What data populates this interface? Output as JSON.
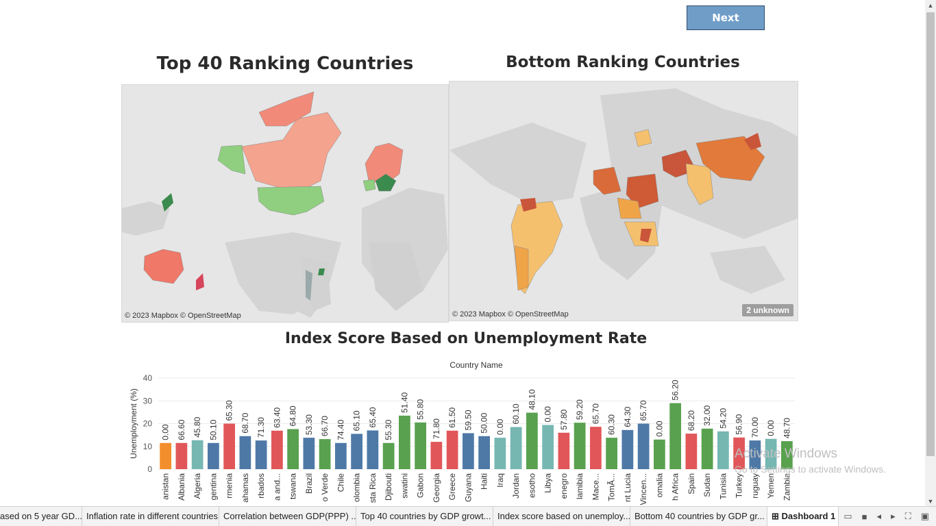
{
  "buttons": {
    "next_label": "Next"
  },
  "maps": {
    "top": {
      "title": "Top 40 Ranking Countries",
      "attribution": "© 2023 Mapbox © OpenStreetMap"
    },
    "bottom": {
      "title": "Bottom Ranking Countries",
      "attribution": "© 2023 Mapbox © OpenStreetMap",
      "unknown_badge": "2 unknown"
    }
  },
  "chart": {
    "title": "Index Score Based on Unemployment Rate",
    "subtitle": "Country Name"
  },
  "chart_data": {
    "type": "bar",
    "title": "Index Score Based on Unemployment Rate",
    "xlabel": "Country Name",
    "ylabel": "Unemployment (%)",
    "ylim": [
      0,
      40
    ],
    "yticks": [
      0,
      10,
      20,
      30,
      40
    ],
    "categories": [
      "anistan",
      "Albania",
      "Algeria",
      "gentina",
      "rmenia",
      "ahamas",
      "rbados",
      "a and...",
      "tswana",
      "Brazil",
      "o Verde",
      "Chile",
      "olombia",
      "sta Rica",
      "Djibouti",
      "swatini",
      "Gabon",
      "Georgia",
      "Greece",
      "Guyana",
      "Haiti",
      "Iraq",
      "Jordan",
      "esotho",
      "Libya",
      "enegro",
      "lamibia",
      "Mace...",
      "TomÃ...",
      "nt Lucia",
      "Vincen...",
      "omalia",
      "h Africa",
      "Spain",
      "Sudan",
      "Tunisia",
      "Turkey",
      "ruguay",
      "Yemen",
      "Zambia"
    ],
    "values": [
      11.5,
      11.5,
      12.7,
      11.5,
      20.0,
      14.5,
      12.6,
      16.9,
      17.6,
      13.8,
      13.2,
      11.5,
      15.5,
      17.0,
      11.5,
      23.5,
      20.5,
      12.0,
      16.9,
      15.8,
      14.5,
      13.8,
      18.5,
      24.8,
      19.4,
      16.0,
      20.4,
      18.6,
      13.8,
      17.2,
      20.0,
      13.0,
      29.0,
      15.6,
      17.8,
      16.6,
      13.9,
      12.6,
      13.3,
      12.3
    ],
    "labels": [
      "0.00",
      "66.60",
      "45.80",
      "50.10",
      "65.30",
      "68.70",
      "71.30",
      "63.40",
      "64.80",
      "53.30",
      "66.70",
      "74.40",
      "65.10",
      "65.40",
      "55.30",
      "51.40",
      "55.80",
      "71.80",
      "61.50",
      "59.50",
      "50.00",
      "0.00",
      "60.10",
      "48.10",
      "0.00",
      "57.80",
      "59.20",
      "65.70",
      "60.30",
      "64.30",
      "65.70",
      "0.00",
      "56.20",
      "68.20",
      "32.00",
      "54.20",
      "56.90",
      "70.00",
      "0.00",
      "48.70"
    ],
    "colors": [
      "#f28e2b",
      "#e15759",
      "#76b7b2",
      "#4e79a7",
      "#e15759",
      "#4e79a7",
      "#4e79a7",
      "#e15759",
      "#59a14f",
      "#4e79a7",
      "#59a14f",
      "#4e79a7",
      "#4e79a7",
      "#4e79a7",
      "#59a14f",
      "#59a14f",
      "#59a14f",
      "#e15759",
      "#e15759",
      "#4e79a7",
      "#4e79a7",
      "#76b7b2",
      "#76b7b2",
      "#59a14f",
      "#76b7b2",
      "#e15759",
      "#59a14f",
      "#e15759",
      "#59a14f",
      "#4e79a7",
      "#4e79a7",
      "#59a14f",
      "#59a14f",
      "#e15759",
      "#59a14f",
      "#76b7b2",
      "#e15759",
      "#4e79a7",
      "#76b7b2",
      "#59a14f"
    ]
  },
  "tabs": [
    "ased on 5 year GD...",
    "Inflation rate in different countries",
    "Correlation between GDP(PPP) ...",
    "Top 40 countries by GDP growt...",
    "Index score based on unemploy...",
    "Bottom 40 countries by GDP gr...",
    "Dashboard 1"
  ],
  "watermark": {
    "line1": "Activate Windows",
    "line2": "Go to Settings to activate Windows."
  }
}
